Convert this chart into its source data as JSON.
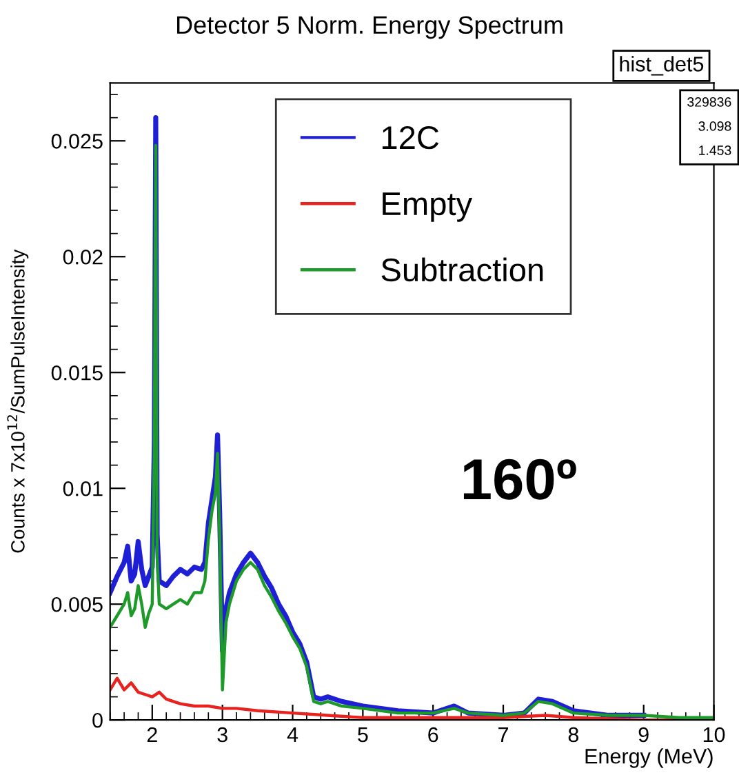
{
  "chart_data": {
    "type": "line",
    "title": "Detector 5 Norm. Energy Spectrum",
    "xlabel": "Energy (MeV)",
    "ylabel": "Counts x 7x10$^{12}$/SumPulseIntensity",
    "xlim": [
      1.4,
      10
    ],
    "xticks": [
      2,
      3,
      4,
      5,
      6,
      7,
      8,
      9,
      10
    ],
    "ylim": [
      0,
      0.0275
    ],
    "yticks": [
      0,
      0.005,
      0.01,
      0.015,
      0.02,
      0.025
    ],
    "legend": "top right",
    "grid": false,
    "annotations": [
      "160º",
      "hist_det5",
      "329836",
      "3.098",
      "1.453"
    ],
    "x": [
      1.4,
      1.5,
      1.6,
      1.65,
      1.7,
      1.75,
      1.8,
      1.85,
      1.9,
      1.95,
      2.0,
      2.03,
      2.05,
      2.07,
      2.1,
      2.2,
      2.3,
      2.4,
      2.5,
      2.6,
      2.7,
      2.75,
      2.8,
      2.85,
      2.9,
      2.93,
      2.96,
      3.0,
      3.05,
      3.1,
      3.2,
      3.3,
      3.4,
      3.5,
      3.6,
      3.7,
      3.8,
      3.9,
      4.0,
      4.1,
      4.2,
      4.3,
      4.4,
      4.5,
      4.7,
      5.0,
      5.5,
      6.0,
      6.3,
      6.5,
      7.0,
      7.3,
      7.5,
      7.7,
      8.0,
      8.5,
      9.0,
      9.5,
      10.0
    ],
    "series": [
      {
        "name": "12C",
        "color": "#1f1fd6",
        "values": [
          0.0055,
          0.0062,
          0.0068,
          0.0075,
          0.006,
          0.0063,
          0.0077,
          0.0065,
          0.0058,
          0.0062,
          0.0066,
          0.012,
          0.026,
          0.008,
          0.006,
          0.0058,
          0.0062,
          0.0065,
          0.0063,
          0.0066,
          0.0065,
          0.0068,
          0.0085,
          0.0095,
          0.0105,
          0.0123,
          0.009,
          0.003,
          0.0048,
          0.0055,
          0.0063,
          0.0068,
          0.0072,
          0.0068,
          0.0062,
          0.0057,
          0.005,
          0.0045,
          0.0038,
          0.0033,
          0.0025,
          0.001,
          0.0009,
          0.001,
          0.0008,
          0.0006,
          0.0004,
          0.0003,
          0.0006,
          0.0003,
          0.0002,
          0.0003,
          0.0009,
          0.0008,
          0.0004,
          0.0002,
          0.0002,
          null,
          null
        ]
      },
      {
        "name": "Empty",
        "color": "#e8231f",
        "x": [
          1.4,
          1.5,
          1.6,
          1.7,
          1.8,
          1.9,
          2.0,
          2.1,
          2.2,
          2.4,
          2.6,
          2.8,
          3.0,
          3.2,
          3.5,
          4.0,
          4.5,
          5.0,
          6.0,
          7.0,
          7.6,
          8.0,
          9.0,
          10.0
        ],
        "values": [
          0.0013,
          0.0018,
          0.0013,
          0.0016,
          0.0012,
          0.0011,
          0.001,
          0.0012,
          0.0009,
          0.0007,
          0.0006,
          0.0006,
          0.0005,
          0.0005,
          0.0004,
          0.0003,
          0.0002,
          0.0001,
          0.0001,
          0.0001,
          0.0002,
          0.0001,
          0.0,
          0.0
        ]
      },
      {
        "name": "Subtraction",
        "color": "#1d9a2a",
        "values": [
          0.004,
          0.0045,
          0.005,
          0.0055,
          0.0045,
          0.0048,
          0.0058,
          0.005,
          0.004,
          0.0046,
          0.005,
          0.012,
          0.0248,
          0.007,
          0.005,
          0.0048,
          0.005,
          0.0052,
          0.005,
          0.0055,
          0.0055,
          0.006,
          0.0078,
          0.009,
          0.0098,
          0.0115,
          0.008,
          0.0013,
          0.0042,
          0.005,
          0.006,
          0.0065,
          0.0068,
          0.0065,
          0.0058,
          0.0053,
          0.0047,
          0.0042,
          0.0036,
          0.0031,
          0.0023,
          0.0008,
          0.0007,
          0.0008,
          0.0006,
          0.0005,
          0.0003,
          0.0003,
          0.0005,
          0.0003,
          0.0002,
          0.0003,
          0.0008,
          0.0007,
          0.0003,
          0.0002,
          0.0002,
          0.0001,
          0.0001
        ]
      }
    ]
  }
}
